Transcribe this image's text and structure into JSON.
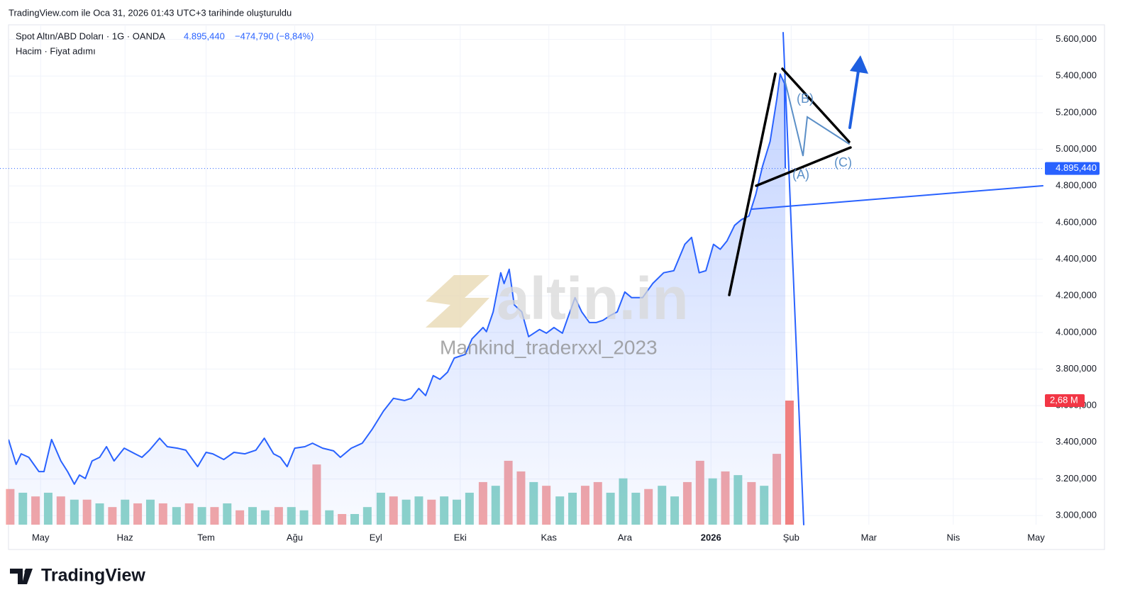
{
  "header": {
    "caption": "TradingView.com ile Oca 31, 2026 01:43 UTC+3 tarihinde oluşturuldu",
    "logo": "TradingView"
  },
  "chart_data": {
    "type": "line",
    "symbol": "Spot Altın/ABD Doları · 1G · OANDA",
    "change": "−474,790 (−8,84%)",
    "indicators": "Hacim · Fiyat adımı",
    "watermark": "altin.in",
    "watermark_author": "Mankind_traderxxl_2023",
    "annotations": [
      "(A)",
      "(B)",
      "(C)"
    ],
    "last_price": {
      "value": 4895440,
      "label": "4.895,440"
    },
    "color": "#2962ff",
    "grid": true,
    "xlim": [
      -0.38,
      11.87
    ],
    "ylim": [
      2950000,
      5680000
    ],
    "xticks": [
      {
        "value": 0,
        "label": "May"
      },
      {
        "value": 1.0,
        "label": "Haz"
      },
      {
        "value": 1.96,
        "label": "Tem"
      },
      {
        "value": 3.01,
        "label": "Ağu"
      },
      {
        "value": 3.97,
        "label": "Eyl"
      },
      {
        "value": 4.97,
        "label": "Eki"
      },
      {
        "value": 6.02,
        "label": "Kas"
      },
      {
        "value": 6.92,
        "label": "Ara"
      },
      {
        "value": 7.94,
        "label": "2026"
      },
      {
        "value": 8.89,
        "label": "Şub"
      },
      {
        "value": 9.81,
        "label": "Mar"
      },
      {
        "value": 10.81,
        "label": "Nis"
      },
      {
        "value": 11.79,
        "label": "May"
      }
    ],
    "yticks": [
      {
        "value": 3000000,
        "label": "3.000,000"
      },
      {
        "value": 3200000,
        "label": "3.200,000"
      },
      {
        "value": 3400000,
        "label": "3.400,000"
      },
      {
        "value": 3600000,
        "label": "3.600,000"
      },
      {
        "value": 3800000,
        "label": "3.800,000"
      },
      {
        "value": 4000000,
        "label": "4.000,000"
      },
      {
        "value": 4200000,
        "label": "4.200,000"
      },
      {
        "value": 4400000,
        "label": "4.400,000"
      },
      {
        "value": 4600000,
        "label": "4.600,000"
      },
      {
        "value": 4800000,
        "label": "4.800,000"
      },
      {
        "value": 5000000,
        "label": "5.000,000"
      },
      {
        "value": 5200000,
        "label": "5.200,000"
      },
      {
        "value": 5400000,
        "label": "5.400,000"
      },
      {
        "value": 5600000,
        "label": "5.600,000"
      }
    ],
    "x": [
      -0.38,
      -0.29,
      -0.23,
      -0.14,
      -0.02,
      0.04,
      0.13,
      0.24,
      0.32,
      0.4,
      0.46,
      0.53,
      0.61,
      0.7,
      0.78,
      0.87,
      0.99,
      1.12,
      1.2,
      1.29,
      1.41,
      1.5,
      1.62,
      1.72,
      1.86,
      1.96,
      2.04,
      2.17,
      2.29,
      2.42,
      2.55,
      2.65,
      2.76,
      2.84,
      2.92,
      3.01,
      3.13,
      3.22,
      3.34,
      3.47,
      3.55,
      3.68,
      3.81,
      3.93,
      4.06,
      4.18,
      4.31,
      4.39,
      4.48,
      4.56,
      4.65,
      4.73,
      4.82,
      4.9,
      5.03,
      5.11,
      5.24,
      5.28,
      5.36,
      5.45,
      5.49,
      5.55,
      5.61,
      5.7,
      5.78,
      5.91,
      5.99,
      6.08,
      6.18,
      6.24,
      6.33,
      6.41,
      6.5,
      6.58,
      6.66,
      6.75,
      6.83,
      6.92,
      7.0,
      7.13,
      7.25,
      7.38,
      7.5,
      7.63,
      7.71,
      7.8,
      7.88,
      7.97,
      8.05,
      8.13,
      8.22,
      8.3,
      8.39,
      8.47,
      8.55,
      8.64,
      8.72,
      8.76,
      8.81,
      8.82
    ],
    "values": [
      3415000,
      3279000,
      3337000,
      3318000,
      3240000,
      3240000,
      3415000,
      3298000,
      3240000,
      3171000,
      3221000,
      3202000,
      3298000,
      3318000,
      3376000,
      3298000,
      3368000,
      3337000,
      3318000,
      3357000,
      3422000,
      3376000,
      3368000,
      3357000,
      3267000,
      3345000,
      3337000,
      3306000,
      3345000,
      3337000,
      3357000,
      3422000,
      3337000,
      3318000,
      3267000,
      3368000,
      3376000,
      3395000,
      3368000,
      3353000,
      3318000,
      3368000,
      3395000,
      3473000,
      3570000,
      3640000,
      3628000,
      3640000,
      3694000,
      3655000,
      3764000,
      3744000,
      3783000,
      3860000,
      3880000,
      3965000,
      4027000,
      4004000,
      4112000,
      4326000,
      4267000,
      4345000,
      4151000,
      4112000,
      3977000,
      4016000,
      3996000,
      4027000,
      3996000,
      4074000,
      4190000,
      4112000,
      4054000,
      4054000,
      4066000,
      4093000,
      4112000,
      4221000,
      4190000,
      4190000,
      4267000,
      4326000,
      4337000,
      4481000,
      4519000,
      4326000,
      4337000,
      4481000,
      4454000,
      4500000,
      4585000,
      4616000,
      4636000,
      4752000,
      4907000,
      5043000,
      5275000,
      5411000,
      5360000,
      4895440
    ],
    "volume": {
      "x": [
        -0.36,
        -0.21,
        -0.06,
        0.09,
        0.24,
        0.4,
        0.55,
        0.7,
        0.85,
        1.0,
        1.15,
        1.3,
        1.45,
        1.61,
        1.76,
        1.91,
        2.06,
        2.21,
        2.36,
        2.51,
        2.66,
        2.82,
        2.97,
        3.12,
        3.27,
        3.42,
        3.57,
        3.72,
        3.87,
        4.03,
        4.18,
        4.33,
        4.48,
        4.63,
        4.78,
        4.93,
        5.08,
        5.24,
        5.39,
        5.54,
        5.69,
        5.84,
        5.99,
        6.15,
        6.3,
        6.45,
        6.6,
        6.75,
        6.9,
        7.05,
        7.2,
        7.36,
        7.51,
        7.66,
        7.81,
        7.96,
        8.11,
        8.26,
        8.42,
        8.57,
        8.72,
        8.87
      ],
      "values": [
        0.77,
        0.69,
        0.61,
        0.69,
        0.61,
        0.54,
        0.54,
        0.46,
        0.38,
        0.54,
        0.46,
        0.54,
        0.46,
        0.38,
        0.46,
        0.38,
        0.38,
        0.46,
        0.31,
        0.38,
        0.31,
        0.38,
        0.38,
        0.31,
        1.3,
        0.31,
        0.23,
        0.23,
        0.38,
        0.69,
        0.61,
        0.54,
        0.61,
        0.54,
        0.61,
        0.54,
        0.69,
        0.92,
        0.84,
        1.38,
        1.15,
        0.92,
        0.84,
        0.61,
        0.69,
        0.84,
        0.92,
        0.69,
        1.0,
        0.69,
        0.77,
        0.84,
        0.61,
        0.92,
        1.38,
        1.0,
        1.15,
        1.07,
        0.92,
        0.84,
        1.53,
        2.68
      ],
      "value_labels": [
        null,
        null,
        null,
        null,
        null,
        null,
        null,
        null,
        null,
        null,
        null,
        null,
        null,
        null,
        null,
        null,
        null,
        null,
        null,
        null,
        null,
        null,
        null,
        null,
        null,
        null,
        null,
        null,
        null,
        null,
        null,
        null,
        null,
        null,
        null,
        null,
        null,
        null,
        null,
        null,
        null,
        null,
        null,
        null,
        null,
        null,
        null,
        null,
        null,
        null,
        null,
        null,
        null,
        null,
        null,
        null,
        null,
        null,
        null,
        null,
        null,
        "2,68 M"
      ],
      "colors": [
        "#f4a6a6",
        "#8ed4c9",
        "#f4a6a6",
        "#8ed4c9",
        "#f4a6a6",
        "#8ed4c9",
        "#f4a6a6",
        "#8ed4c9",
        "#f4a6a6",
        "#8ed4c9",
        "#f4a6a6",
        "#8ed4c9",
        "#f4a6a6",
        "#8ed4c9",
        "#f4a6a6",
        "#8ed4c9",
        "#f4a6a6",
        "#8ed4c9",
        "#f4a6a6",
        "#8ed4c9",
        "#8ed4c9",
        "#f4a6a6",
        "#8ed4c9",
        "#8ed4c9",
        "#f4a6a6",
        "#8ed4c9",
        "#f4a6a6",
        "#8ed4c9",
        "#8ed4c9",
        "#8ed4c9",
        "#f4a6a6",
        "#8ed4c9",
        "#8ed4c9",
        "#f4a6a6",
        "#8ed4c9",
        "#8ed4c9",
        "#8ed4c9",
        "#f4a6a6",
        "#8ed4c9",
        "#f4a6a6",
        "#f4a6a6",
        "#8ed4c9",
        "#f4a6a6",
        "#8ed4c9",
        "#8ed4c9",
        "#f4a6a6",
        "#f4a6a6",
        "#8ed4c9",
        "#8ed4c9",
        "#8ed4c9",
        "#f4a6a6",
        "#8ed4c9",
        "#8ed4c9",
        "#f4a6a6",
        "#f4a6a6",
        "#8ed4c9",
        "#f4a6a6",
        "#8ed4c9",
        "#f4a6a6",
        "#8ed4c9",
        "#f4a6a6",
        "#f08080"
      ]
    }
  }
}
